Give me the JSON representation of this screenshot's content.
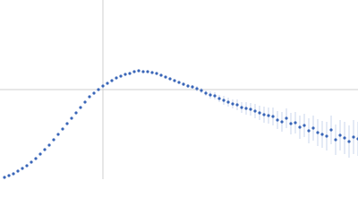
{
  "chart_data": {
    "type": "scatter",
    "color": "#3a66b8",
    "x": [
      5,
      10,
      15,
      20,
      25,
      30,
      35,
      40,
      45,
      50,
      55,
      60,
      65,
      70,
      75,
      80,
      85,
      90,
      95,
      100,
      105,
      110,
      115,
      120,
      125,
      130,
      135,
      140,
      145,
      150,
      155,
      160,
      165,
      170,
      175,
      180,
      185,
      190,
      195,
      200,
      205,
      210,
      215,
      220,
      225,
      230,
      235,
      240,
      245,
      250,
      255,
      260,
      265,
      270,
      275,
      280,
      285,
      290,
      295,
      300,
      305,
      310,
      315,
      320,
      325,
      330,
      335,
      340,
      345,
      350,
      355,
      360,
      365,
      370,
      375,
      380,
      385,
      390,
      395,
      400
    ],
    "values": [
      2,
      4,
      6,
      9,
      12,
      15,
      19,
      23,
      28,
      33,
      38,
      44,
      50,
      56,
      62,
      68,
      74,
      80,
      86,
      92,
      96,
      100,
      104,
      107,
      110,
      113,
      115,
      117,
      118,
      120,
      121,
      120,
      120,
      119,
      118,
      116,
      114,
      112,
      110,
      108,
      106,
      104,
      103,
      101,
      99,
      96,
      94,
      93,
      90,
      88,
      86,
      84,
      83,
      80,
      79,
      78,
      76,
      74,
      72,
      71,
      70,
      66,
      64,
      68,
      62,
      63,
      58,
      60,
      54,
      57,
      52,
      50,
      48,
      55,
      44,
      49,
      46,
      42,
      47,
      45
    ],
    "errors": [
      1,
      1,
      1,
      1,
      1,
      1,
      1,
      1,
      1,
      1,
      1,
      1,
      1,
      1,
      1,
      1,
      1,
      1,
      1,
      1,
      1,
      1,
      1,
      1,
      1,
      1,
      1,
      1,
      1,
      1,
      1,
      1,
      1,
      1,
      1,
      1,
      1,
      1,
      1,
      1,
      2,
      2,
      2,
      3,
      3,
      3,
      4,
      4,
      4,
      5,
      5,
      5,
      6,
      6,
      7,
      7,
      8,
      8,
      9,
      9,
      10,
      10,
      11,
      11,
      12,
      12,
      13,
      13,
      14,
      14,
      15,
      15,
      16,
      16,
      17,
      17,
      18,
      18,
      19,
      19
    ],
    "xlim": [
      0,
      400
    ],
    "ylim": [
      0,
      200
    ]
  }
}
